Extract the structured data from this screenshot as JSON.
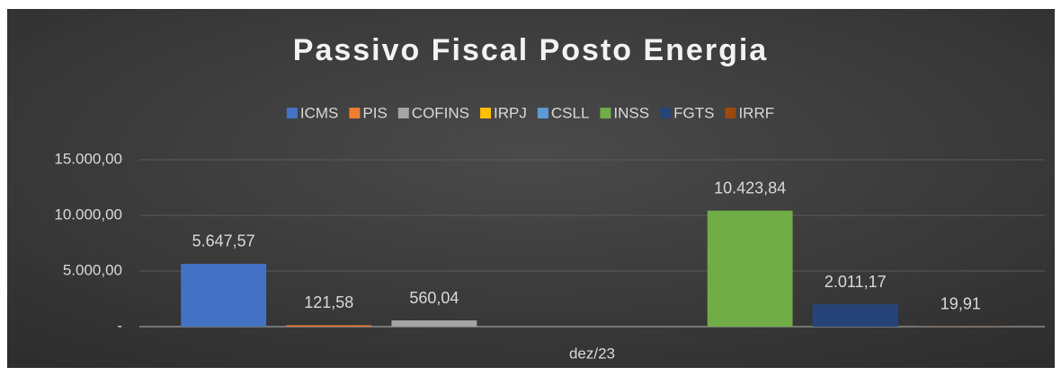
{
  "chart_data": {
    "type": "bar",
    "title": "Passivo Fiscal Posto Energia",
    "categories": [
      "dez/23"
    ],
    "series": [
      {
        "name": "ICMS",
        "color": "#4472c4",
        "values": [
          5647.57
        ],
        "value_labels": [
          "5.647,57"
        ]
      },
      {
        "name": "PIS",
        "color": "#ed7d31",
        "values": [
          121.58
        ],
        "value_labels": [
          "121,58"
        ]
      },
      {
        "name": "COFINS",
        "color": "#a5a5a5",
        "values": [
          560.04
        ],
        "value_labels": [
          "560,04"
        ]
      },
      {
        "name": "IRPJ",
        "color": "#ffc000",
        "values": [
          null
        ],
        "value_labels": [
          null
        ]
      },
      {
        "name": "CSLL",
        "color": "#5b9bd5",
        "values": [
          null
        ],
        "value_labels": [
          null
        ]
      },
      {
        "name": "INSS",
        "color": "#70ad47",
        "values": [
          10423.84
        ],
        "value_labels": [
          "10.423,84"
        ]
      },
      {
        "name": "FGTS",
        "color": "#264478",
        "values": [
          2011.17
        ],
        "value_labels": [
          "2.011,17"
        ]
      },
      {
        "name": "IRRF",
        "color": "#9e480e",
        "values": [
          19.91
        ],
        "value_labels": [
          "19,91"
        ]
      }
    ],
    "ylim": [
      0,
      15000
    ],
    "yticks": [
      {
        "value": 0,
        "label": "-"
      },
      {
        "value": 5000,
        "label": "5.000,00"
      },
      {
        "value": 10000,
        "label": "10.000,00"
      },
      {
        "value": 15000,
        "label": "15.000,00"
      }
    ],
    "grid": true,
    "legend": "top"
  }
}
